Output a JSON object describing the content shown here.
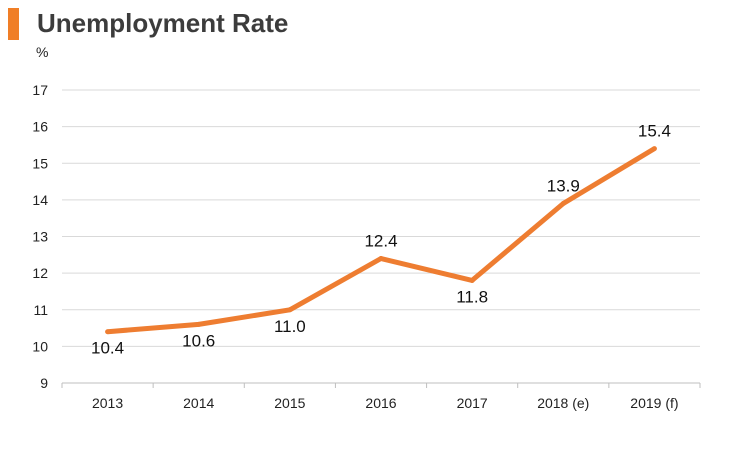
{
  "header": {
    "title": "Unemployment Rate",
    "unit": "%"
  },
  "colors": {
    "accent": "#f07e26",
    "line": "#ee7d31",
    "grid": "#d9d9d9",
    "axis": "#bfbfbf"
  },
  "chart_data": {
    "type": "line",
    "title": "Unemployment Rate",
    "ylabel": "%",
    "xlabel": "",
    "categories": [
      "2013",
      "2014",
      "2015",
      "2016",
      "2017",
      "2018 (e)",
      "2019 (f)"
    ],
    "series": [
      {
        "values": [
          10.4,
          10.6,
          11.0,
          12.4,
          11.8,
          13.9,
          15.4
        ],
        "labels": [
          "10.4",
          "10.6",
          "11.0",
          "12.4",
          "11.8",
          "13.9",
          "15.4"
        ]
      }
    ],
    "yticks": [
      9,
      10,
      11,
      12,
      13,
      14,
      15,
      16,
      17
    ],
    "ylim": [
      9,
      17
    ],
    "grid": true,
    "legend": "none"
  }
}
